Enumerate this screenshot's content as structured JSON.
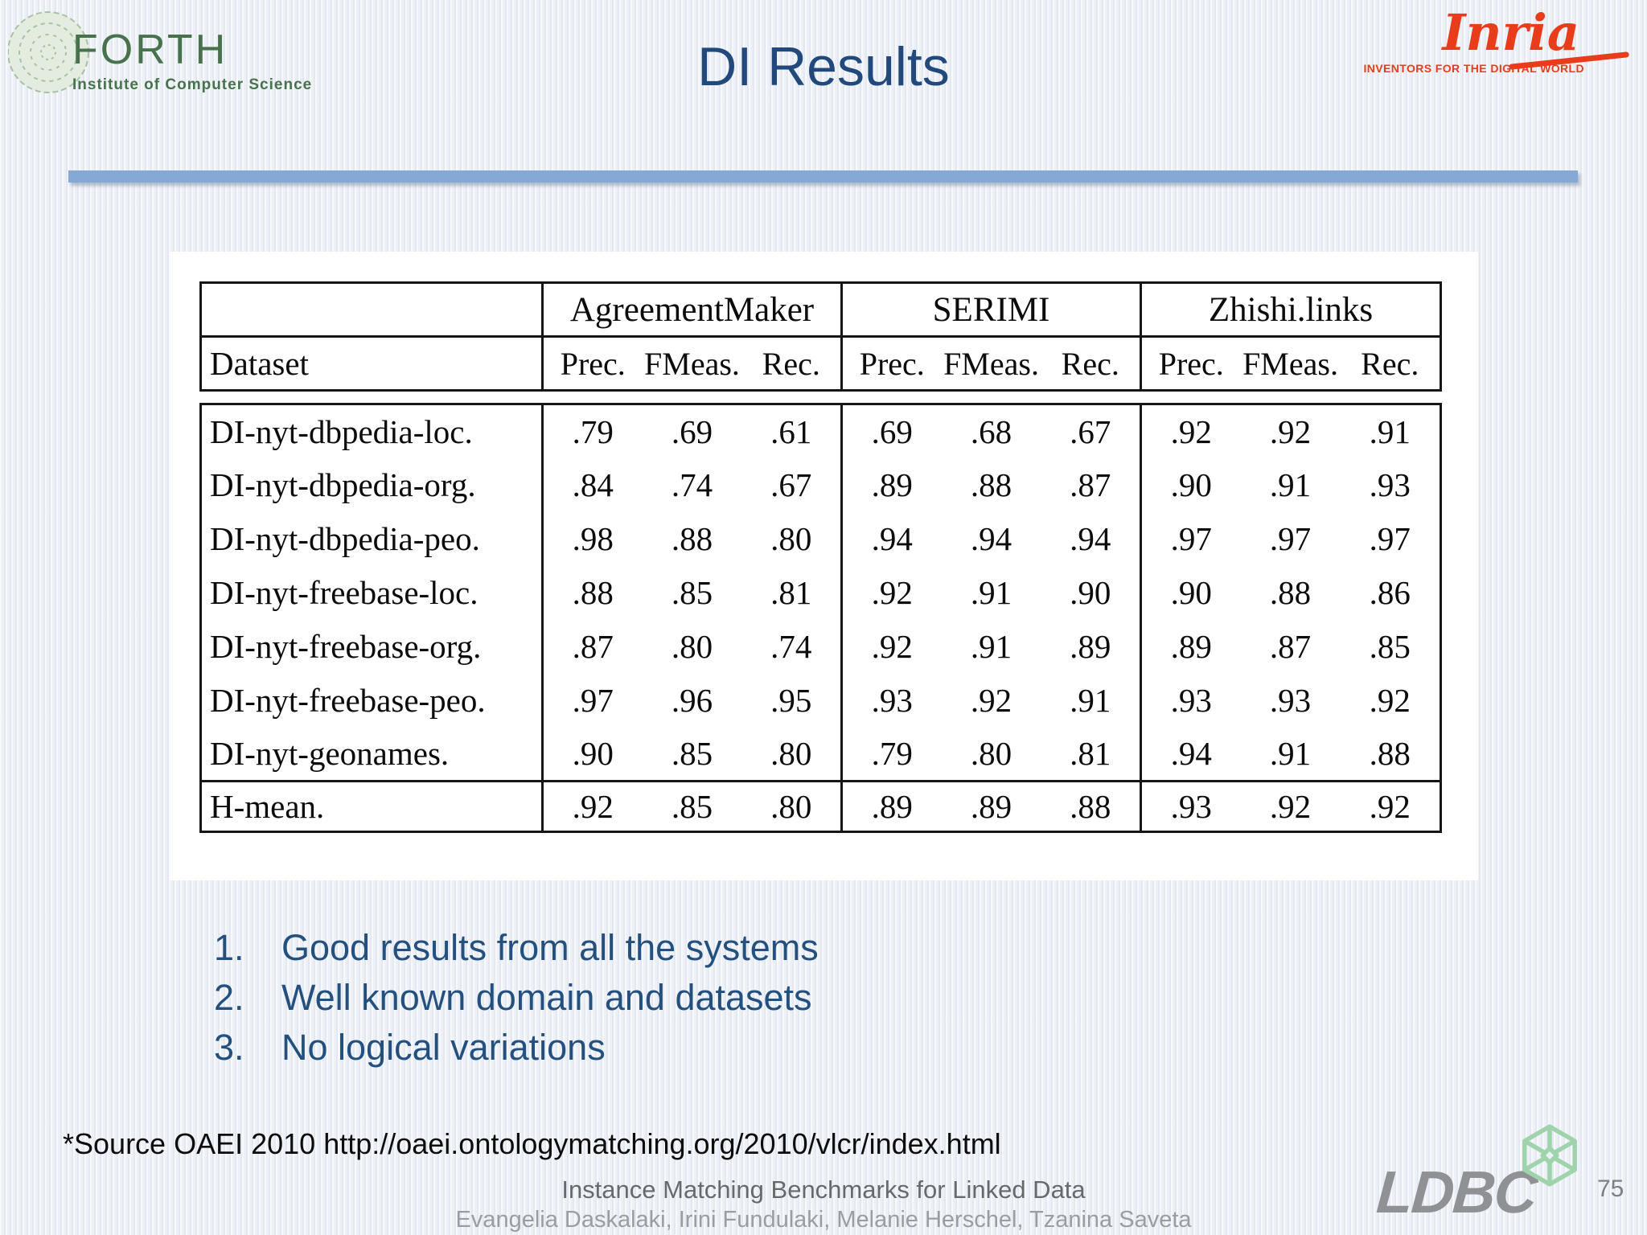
{
  "slide": {
    "title": "DI Results",
    "page_number": "75"
  },
  "logos": {
    "forth": {
      "name": "FORTH",
      "subtitle": "Institute of Computer Science"
    },
    "inria": {
      "name": "Inria",
      "tagline": "INVENTORS FOR THE DIGITAL WORLD"
    },
    "ldbc": {
      "name": "LDBC"
    }
  },
  "results_table": {
    "dataset_header": "Dataset",
    "groups": [
      {
        "label": "AgreementMaker"
      },
      {
        "label": "SERIMI"
      },
      {
        "label": "Zhishi.links"
      }
    ],
    "metric_headers": [
      "Prec.",
      "FMeas.",
      "Rec."
    ],
    "rows": [
      {
        "dataset": "DI-nyt-dbpedia-loc.",
        "values": [
          ".79",
          ".69",
          ".61",
          ".69",
          ".68",
          ".67",
          ".92",
          ".92",
          ".91"
        ]
      },
      {
        "dataset": "DI-nyt-dbpedia-org.",
        "values": [
          ".84",
          ".74",
          ".67",
          ".89",
          ".88",
          ".87",
          ".90",
          ".91",
          ".93"
        ]
      },
      {
        "dataset": "DI-nyt-dbpedia-peo.",
        "values": [
          ".98",
          ".88",
          ".80",
          ".94",
          ".94",
          ".94",
          ".97",
          ".97",
          ".97"
        ]
      },
      {
        "dataset": "DI-nyt-freebase-loc.",
        "values": [
          ".88",
          ".85",
          ".81",
          ".92",
          ".91",
          ".90",
          ".90",
          ".88",
          ".86"
        ]
      },
      {
        "dataset": "DI-nyt-freebase-org.",
        "values": [
          ".87",
          ".80",
          ".74",
          ".92",
          ".91",
          ".89",
          ".89",
          ".87",
          ".85"
        ]
      },
      {
        "dataset": "DI-nyt-freebase-peo.",
        "values": [
          ".97",
          ".96",
          ".95",
          ".93",
          ".92",
          ".91",
          ".93",
          ".93",
          ".92"
        ]
      },
      {
        "dataset": "DI-nyt-geonames.",
        "values": [
          ".90",
          ".85",
          ".80",
          ".79",
          ".80",
          ".81",
          ".94",
          ".91",
          ".88"
        ]
      }
    ],
    "summary_row": {
      "dataset": "H-mean.",
      "values": [
        ".92",
        ".85",
        ".80",
        ".89",
        ".89",
        ".88",
        ".93",
        ".92",
        ".92"
      ]
    }
  },
  "notes": [
    {
      "number": "1.",
      "text": "Good results from all the systems"
    },
    {
      "number": "2.",
      "text": "Well known domain and datasets"
    },
    {
      "number": "3.",
      "text": "No logical variations"
    }
  ],
  "source_note": "*Source OAEI 2010 http://oaei.ontologymatching.org/2010/vlcr/index.html",
  "footer": {
    "title": "Instance Matching Benchmarks for Linked Data",
    "authors": "Evangelia Daskalaki, Irini Fundulaki, Melanie Herschel, Tzanina Saveta"
  }
}
